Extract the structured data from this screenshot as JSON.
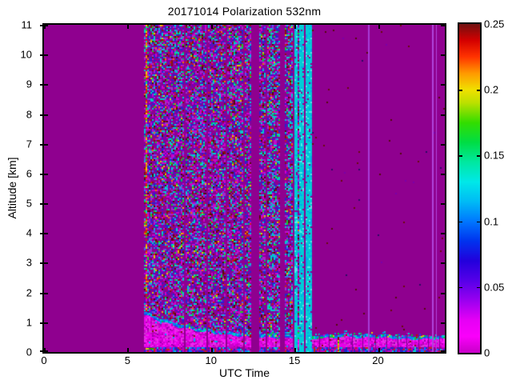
{
  "title": "20171014 Polarization 532nm",
  "axes": {
    "xlabel": "UTC Time",
    "ylabel": "Altitude [km]",
    "x_range": [
      0,
      24
    ],
    "y_range": [
      0,
      11
    ],
    "x_ticks": [
      0,
      5,
      10,
      15,
      20
    ],
    "y_ticks": [
      0,
      1,
      2,
      3,
      4,
      5,
      6,
      7,
      8,
      9,
      10,
      11
    ]
  },
  "colorbar": {
    "range": [
      0,
      0.25
    ],
    "tick_values": [
      0,
      0.05,
      0.1,
      0.15,
      0.2,
      0.25
    ],
    "tick_labels": [
      "0",
      "0.05",
      "0.1",
      "0.15",
      "0.2",
      "0.25"
    ],
    "colormap_stops": [
      [
        0.0,
        "#C800C8"
      ],
      [
        0.05,
        "#FA00FA"
      ],
      [
        0.1,
        "#E500F5"
      ],
      [
        0.16,
        "#9900F0"
      ],
      [
        0.22,
        "#5500E8"
      ],
      [
        0.28,
        "#2200DC"
      ],
      [
        0.34,
        "#0033EE"
      ],
      [
        0.4,
        "#0077FF"
      ],
      [
        0.46,
        "#00BBF5"
      ],
      [
        0.52,
        "#00E8E8"
      ],
      [
        0.58,
        "#00E8A0"
      ],
      [
        0.64,
        "#00DD44"
      ],
      [
        0.7,
        "#33DD00"
      ],
      [
        0.76,
        "#BBE000"
      ],
      [
        0.8,
        "#F0E000"
      ],
      [
        0.85,
        "#FF9900"
      ],
      [
        0.9,
        "#FF3300"
      ],
      [
        0.95,
        "#D40000"
      ],
      [
        1.0,
        "#701010"
      ]
    ]
  },
  "chart_data": {
    "type": "heatmap",
    "title": "20171014 Polarization 532nm",
    "xlabel": "UTC Time",
    "ylabel": "Altitude [km]",
    "x_range_utc": [
      0,
      24
    ],
    "y_range_km": [
      0,
      11
    ],
    "value_range": [
      0,
      0.25
    ],
    "colors": {
      "background": "#8F008F",
      "cyan_line": "#00CCD6",
      "violet_line": "#A83CD6",
      "violet_line_bright": "#AF46DB",
      "bl_dark_line": "#7E0092"
    },
    "no_data_interval_utc": [
      0,
      6
    ],
    "noise_region_utc": [
      6,
      14.8
    ],
    "first_profile_utc": [
      6.0,
      6.12
    ],
    "gaps_utc": [
      [
        8.3,
        8.45
      ],
      [
        9.7,
        9.76
      ],
      [
        10.85,
        10.95
      ],
      [
        11.85,
        12.0
      ],
      [
        12.35,
        12.8
      ],
      [
        13.25,
        13.32
      ],
      [
        14.1,
        14.35
      ]
    ],
    "cyan_band_utc": [
      14.8,
      15.6
    ],
    "cyan_lines_utc": [
      15.65,
      15.78,
      15.9,
      15.98
    ],
    "quiet_region_utc": [
      16.05,
      24
    ],
    "violet_lines_utc": [
      19.4,
      23.25,
      23.45
    ],
    "surface_feature_utc": 17.57,
    "bl_dark_lines_utc": [
      16.5,
      17.05,
      18.45,
      19.05,
      19.85,
      20.5,
      21.15,
      21.7,
      22.4,
      23.0,
      23.65
    ],
    "boundary_layer": {
      "description": "bright magenta aerosol layer with blue/cyan top edge",
      "profile_utc_km": [
        [
          6,
          1.35
        ],
        [
          7,
          1.12
        ],
        [
          8,
          0.95
        ],
        [
          9,
          0.83
        ],
        [
          10,
          0.74
        ],
        [
          11,
          0.68
        ],
        [
          12,
          0.63
        ],
        [
          13,
          0.6
        ],
        [
          14,
          0.58
        ],
        [
          15,
          0.56
        ],
        [
          16,
          0.55
        ],
        [
          17,
          0.58
        ],
        [
          18,
          0.62
        ],
        [
          19,
          0.58
        ],
        [
          20,
          0.6
        ],
        [
          21,
          0.55
        ],
        [
          22,
          0.53
        ],
        [
          23,
          0.55
        ],
        [
          24,
          0.55
        ]
      ]
    },
    "palettes": {
      "noise": [
        [
          "#8F008F",
          26
        ],
        [
          "#7A00A8",
          8
        ],
        [
          "#CC00CC",
          11
        ],
        [
          "#9933CC",
          6
        ],
        [
          "#2A22CC",
          9
        ],
        [
          "#4466EE",
          4
        ],
        [
          "#00CCCC",
          8
        ],
        [
          "#00BB66",
          2
        ],
        [
          "#22CC22",
          2
        ],
        [
          "#8A1111",
          6
        ],
        [
          "#CC2211",
          2
        ],
        [
          "#EE7700",
          1
        ],
        [
          "#DDCC00",
          1
        ],
        [
          "#550A0A",
          3
        ],
        [
          "#6A00C8",
          5
        ]
      ],
      "first_profile": [
        [
          "#EE8800",
          3
        ],
        [
          "#DD2200",
          3
        ],
        [
          "#EECC00",
          2
        ],
        [
          "#CC00CC",
          2
        ],
        [
          "#8F008F",
          2
        ],
        [
          "#00CCCC",
          1
        ],
        [
          "#22CC22",
          1
        ]
      ],
      "bl": [
        [
          "#E800E8",
          10
        ],
        [
          "#F51FF5",
          6
        ],
        [
          "#CC00CC",
          6
        ],
        [
          "#D23CD2",
          3
        ],
        [
          "#B800B8",
          3
        ],
        [
          "#9900AA",
          1
        ],
        [
          "#00AAEE",
          0.5
        ],
        [
          "#8A1111",
          0.4
        ]
      ],
      "bl_edge": [
        [
          "#0088EE",
          5
        ],
        [
          "#00CCCC",
          4
        ],
        [
          "#2244EE",
          3
        ],
        [
          "#00CC44",
          2
        ],
        [
          "#BB1100",
          0.7
        ],
        [
          "#DDCC00",
          0.5
        ],
        [
          "#CC00CC",
          1
        ]
      ],
      "speck": [
        [
          "#6A0B0B",
          5
        ],
        [
          "#2A0A66",
          3
        ],
        [
          "#550A0A",
          3
        ],
        [
          "#7A00A8",
          2
        ]
      ],
      "cyan_col": [
        [
          "#00CCD6",
          14
        ],
        [
          "#00AAE8",
          3
        ],
        [
          "#55E8E8",
          2
        ],
        [
          "#8F008F",
          1
        ]
      ],
      "bottom_stripe": [
        [
          "#2222CC",
          4
        ],
        [
          "#0077FF",
          2
        ],
        [
          "#CC2211",
          2
        ],
        [
          "#BB00BB",
          6
        ],
        [
          "#8F008F",
          3
        ],
        [
          "#00CCCC",
          1
        ]
      ],
      "surface_feature": [
        [
          "#DDCC00",
          4
        ],
        [
          "#CC2200",
          3
        ],
        [
          "#22AA00",
          2
        ],
        [
          "#7A0B0B",
          2
        ],
        [
          "#EE8800",
          1
        ]
      ]
    }
  }
}
